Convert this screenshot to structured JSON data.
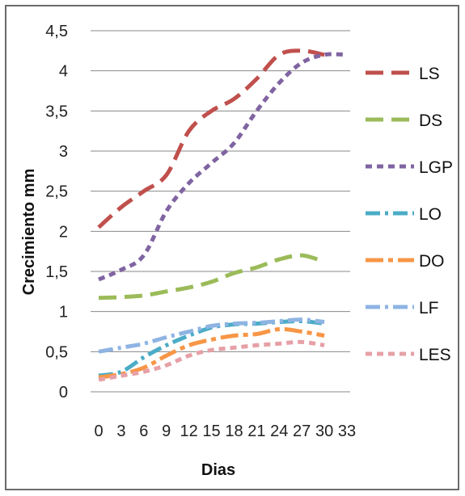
{
  "chart_data": {
    "type": "line",
    "xlabel": "Dias",
    "ylabel": "Crecimiento mm",
    "ylim": [
      0,
      4.5
    ],
    "yticks": [
      "0",
      "0,5",
      "1",
      "1,5",
      "2",
      "2,5",
      "3",
      "3,5",
      "4",
      "4,5"
    ],
    "x": [
      0,
      3,
      6,
      9,
      12,
      15,
      18,
      21,
      24,
      27,
      30,
      33
    ],
    "xtick_labels": [
      "0",
      "3",
      "6",
      "9",
      "12",
      "15",
      "18",
      "21",
      "24",
      "27",
      "30",
      "33"
    ],
    "grid": "horizontal",
    "legend_position": "right",
    "series": [
      {
        "name": "LS",
        "color": "#c0504d",
        "dash": "long-dash",
        "values": [
          2.05,
          2.3,
          2.5,
          2.7,
          3.25,
          3.5,
          3.65,
          3.9,
          4.2,
          4.25,
          4.2,
          null
        ]
      },
      {
        "name": "DS",
        "color": "#9bbb59",
        "dash": "long-dash",
        "values": [
          1.17,
          1.18,
          1.2,
          1.25,
          1.3,
          1.37,
          1.48,
          1.55,
          1.65,
          1.7,
          1.62,
          null
        ]
      },
      {
        "name": "LGP",
        "color": "#8064a2",
        "dash": "short-dash",
        "values": [
          1.4,
          1.52,
          1.7,
          2.25,
          2.6,
          2.85,
          3.1,
          3.5,
          3.85,
          4.1,
          4.2,
          4.2
        ]
      },
      {
        "name": "LO",
        "color": "#4bacc6",
        "dash": "dash-dot",
        "values": [
          0.2,
          0.25,
          0.43,
          0.58,
          0.7,
          0.8,
          0.84,
          0.85,
          0.87,
          0.88,
          0.85,
          null
        ]
      },
      {
        "name": "DO",
        "color": "#f79646",
        "dash": "long-dash-dot",
        "values": [
          0.18,
          0.22,
          0.3,
          0.45,
          0.58,
          0.65,
          0.7,
          0.72,
          0.78,
          0.75,
          0.7,
          null
        ]
      },
      {
        "name": "LF",
        "color": "#8eb4e3",
        "dash": "dash-dot",
        "values": [
          0.5,
          0.55,
          0.6,
          0.68,
          0.75,
          0.82,
          0.85,
          0.86,
          0.88,
          0.9,
          0.87,
          null
        ]
      },
      {
        "name": "LES",
        "color": "#e6a0a6",
        "dash": "short-dash",
        "values": [
          0.15,
          0.2,
          0.25,
          0.33,
          0.45,
          0.52,
          0.55,
          0.58,
          0.6,
          0.62,
          0.58,
          null
        ]
      }
    ]
  }
}
